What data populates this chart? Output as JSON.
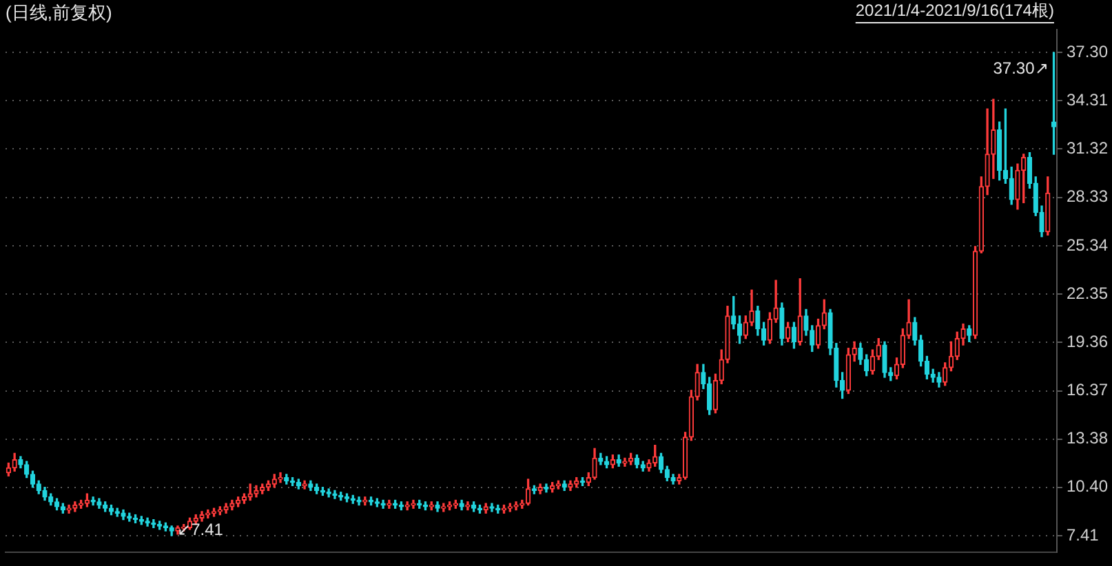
{
  "chart_data": {
    "type": "candlestick",
    "title": "(日线,前复权)",
    "annotations": [
      "2021/1/4-2021/9/16(174根)",
      "37.30↗",
      "↙7.41"
    ],
    "categories": [
      null,
      null,
      null,
      null,
      null,
      null,
      null,
      null,
      null,
      null,
      null,
      null,
      null,
      null,
      null,
      null,
      null,
      null,
      null,
      null,
      null,
      null,
      null,
      null,
      null,
      null,
      null,
      null,
      null,
      null,
      null,
      null,
      null,
      null,
      null,
      null,
      null,
      null,
      null,
      null,
      null,
      null,
      null,
      null,
      null,
      null,
      null,
      null,
      null,
      null,
      null,
      null,
      null,
      null,
      null,
      null,
      null,
      null,
      null,
      null,
      null,
      null,
      null,
      null,
      null,
      null,
      null,
      null,
      null,
      null,
      null,
      null,
      null,
      null,
      null,
      null,
      null,
      null,
      null,
      null,
      null,
      null,
      null,
      null,
      null,
      null,
      null,
      null,
      null,
      null,
      null,
      null,
      null,
      null,
      null,
      null,
      null,
      null,
      null,
      null,
      null,
      null,
      null,
      null,
      null,
      null,
      null,
      null,
      null,
      null,
      null,
      null,
      null,
      null,
      null,
      null,
      null,
      null,
      null,
      null,
      null,
      null,
      null,
      null,
      null,
      null,
      null,
      null,
      null,
      null,
      null,
      null,
      null,
      null,
      null,
      null,
      null,
      null,
      null,
      null,
      null,
      null,
      null,
      null,
      null,
      null,
      null,
      null,
      null,
      null,
      null,
      null,
      null,
      null,
      null,
      null,
      null,
      null,
      null,
      null,
      null,
      null,
      null,
      null,
      null,
      null,
      null,
      null,
      null,
      null,
      null,
      null,
      null,
      null
    ],
    "ohlc": [
      [
        11.3,
        11.9,
        11.1,
        11.6
      ],
      [
        11.6,
        12.5,
        11.4,
        12.1
      ],
      [
        12.1,
        12.3,
        11.6,
        11.8
      ],
      [
        11.8,
        12.0,
        11.0,
        11.2
      ],
      [
        11.2,
        11.4,
        10.4,
        10.6
      ],
      [
        10.6,
        10.8,
        10.0,
        10.2
      ],
      [
        10.2,
        10.4,
        9.6,
        9.8
      ],
      [
        9.8,
        10.0,
        9.3,
        9.5
      ],
      [
        9.5,
        9.7,
        9.0,
        9.2
      ],
      [
        9.2,
        9.4,
        8.8,
        9.0
      ],
      [
        9.0,
        9.3,
        8.8,
        9.1
      ],
      [
        9.1,
        9.5,
        8.9,
        9.3
      ],
      [
        9.3,
        9.6,
        9.1,
        9.4
      ],
      [
        9.4,
        10.0,
        9.2,
        9.6
      ],
      [
        9.6,
        9.8,
        9.3,
        9.5
      ],
      [
        9.5,
        9.7,
        9.1,
        9.3
      ],
      [
        9.3,
        9.5,
        8.9,
        9.1
      ],
      [
        9.1,
        9.3,
        8.7,
        8.9
      ],
      [
        8.9,
        9.1,
        8.6,
        8.8
      ],
      [
        8.8,
        9.0,
        8.4,
        8.6
      ],
      [
        8.6,
        8.8,
        8.3,
        8.5
      ],
      [
        8.5,
        8.7,
        8.2,
        8.4
      ],
      [
        8.4,
        8.6,
        8.1,
        8.3
      ],
      [
        8.3,
        8.5,
        8.0,
        8.2
      ],
      [
        8.2,
        8.4,
        7.9,
        8.1
      ],
      [
        8.1,
        8.3,
        7.8,
        8.0
      ],
      [
        8.0,
        8.2,
        7.7,
        7.9
      ],
      [
        7.9,
        8.0,
        7.41,
        7.7
      ],
      [
        7.7,
        8.0,
        7.5,
        7.9
      ],
      [
        7.9,
        8.1,
        7.7,
        7.9
      ],
      [
        7.9,
        8.5,
        7.8,
        8.3
      ],
      [
        8.3,
        8.7,
        8.1,
        8.5
      ],
      [
        8.5,
        8.9,
        8.3,
        8.7
      ],
      [
        8.7,
        9.0,
        8.5,
        8.8
      ],
      [
        8.8,
        9.1,
        8.6,
        8.9
      ],
      [
        8.9,
        9.2,
        8.7,
        9.0
      ],
      [
        9.0,
        9.4,
        8.8,
        9.2
      ],
      [
        9.2,
        9.6,
        9.0,
        9.4
      ],
      [
        9.4,
        9.8,
        9.2,
        9.6
      ],
      [
        9.6,
        10.0,
        9.4,
        9.8
      ],
      [
        9.8,
        10.6,
        9.6,
        10.0
      ],
      [
        10.0,
        10.5,
        9.8,
        10.2
      ],
      [
        10.2,
        10.6,
        10.0,
        10.4
      ],
      [
        10.4,
        10.8,
        10.2,
        10.6
      ],
      [
        10.6,
        11.2,
        10.4,
        10.9
      ],
      [
        10.9,
        11.3,
        10.7,
        11.0
      ],
      [
        11.0,
        11.2,
        10.6,
        10.8
      ],
      [
        10.8,
        11.0,
        10.5,
        10.7
      ],
      [
        10.7,
        10.9,
        10.3,
        10.5
      ],
      [
        10.5,
        10.8,
        10.3,
        10.6
      ],
      [
        10.6,
        10.8,
        10.2,
        10.4
      ],
      [
        10.4,
        10.6,
        10.0,
        10.2
      ],
      [
        10.2,
        10.4,
        9.9,
        10.1
      ],
      [
        10.1,
        10.3,
        9.8,
        10.0
      ],
      [
        10.0,
        10.2,
        9.7,
        9.9
      ],
      [
        9.9,
        10.1,
        9.6,
        9.8
      ],
      [
        9.8,
        10.0,
        9.5,
        9.7
      ],
      [
        9.7,
        9.9,
        9.4,
        9.6
      ],
      [
        9.6,
        9.8,
        9.3,
        9.5
      ],
      [
        9.5,
        9.8,
        9.3,
        9.6
      ],
      [
        9.6,
        9.8,
        9.3,
        9.5
      ],
      [
        9.5,
        9.7,
        9.2,
        9.4
      ],
      [
        9.4,
        9.6,
        9.1,
        9.3
      ],
      [
        9.3,
        9.6,
        9.1,
        9.4
      ],
      [
        9.4,
        9.6,
        9.1,
        9.3
      ],
      [
        9.3,
        9.5,
        9.0,
        9.2
      ],
      [
        9.2,
        9.5,
        9.0,
        9.3
      ],
      [
        9.3,
        9.6,
        9.1,
        9.4
      ],
      [
        9.4,
        9.6,
        9.1,
        9.3
      ],
      [
        9.3,
        9.5,
        9.0,
        9.2
      ],
      [
        9.2,
        9.5,
        9.0,
        9.3
      ],
      [
        9.3,
        9.5,
        8.9,
        9.1
      ],
      [
        9.1,
        9.4,
        8.9,
        9.2
      ],
      [
        9.2,
        9.5,
        9.0,
        9.3
      ],
      [
        9.3,
        9.6,
        9.1,
        9.4
      ],
      [
        9.4,
        9.6,
        9.0,
        9.2
      ],
      [
        9.2,
        9.5,
        9.0,
        9.3
      ],
      [
        9.3,
        9.5,
        8.9,
        9.1
      ],
      [
        9.1,
        9.3,
        8.8,
        9.0
      ],
      [
        9.0,
        9.4,
        8.8,
        9.2
      ],
      [
        9.2,
        9.4,
        8.9,
        9.1
      ],
      [
        9.1,
        9.3,
        8.8,
        9.0
      ],
      [
        9.0,
        9.3,
        8.8,
        9.1
      ],
      [
        9.1,
        9.4,
        8.9,
        9.2
      ],
      [
        9.2,
        9.5,
        9.0,
        9.3
      ],
      [
        9.3,
        9.6,
        9.1,
        9.4
      ],
      [
        9.4,
        10.9,
        9.3,
        10.3
      ],
      [
        10.3,
        10.5,
        10.0,
        10.2
      ],
      [
        10.2,
        10.6,
        10.0,
        10.4
      ],
      [
        10.4,
        10.6,
        10.1,
        10.3
      ],
      [
        10.3,
        10.7,
        10.1,
        10.5
      ],
      [
        10.5,
        10.8,
        10.3,
        10.6
      ],
      [
        10.6,
        10.8,
        10.2,
        10.4
      ],
      [
        10.4,
        10.8,
        10.2,
        10.6
      ],
      [
        10.6,
        11.0,
        10.4,
        10.8
      ],
      [
        10.8,
        11.0,
        10.5,
        10.7
      ],
      [
        10.7,
        11.3,
        10.5,
        11.0
      ],
      [
        11.0,
        12.8,
        10.9,
        12.2
      ],
      [
        12.2,
        12.5,
        11.8,
        12.0
      ],
      [
        12.0,
        12.3,
        11.6,
        11.8
      ],
      [
        11.8,
        12.4,
        11.6,
        12.1
      ],
      [
        12.1,
        12.4,
        11.7,
        11.9
      ],
      [
        11.9,
        12.2,
        11.7,
        12.0
      ],
      [
        12.0,
        12.5,
        11.8,
        12.2
      ],
      [
        12.2,
        12.4,
        11.6,
        11.8
      ],
      [
        11.8,
        12.0,
        11.4,
        11.6
      ],
      [
        11.6,
        12.1,
        11.4,
        11.9
      ],
      [
        11.9,
        13.0,
        11.7,
        12.3
      ],
      [
        12.3,
        12.5,
        11.3,
        11.5
      ],
      [
        11.5,
        11.7,
        10.8,
        11.0
      ],
      [
        11.0,
        11.2,
        10.6,
        10.8
      ],
      [
        10.8,
        11.2,
        10.6,
        11.0
      ],
      [
        11.0,
        13.8,
        10.9,
        13.5
      ],
      [
        13.5,
        16.4,
        13.3,
        16.0
      ],
      [
        16.0,
        18.0,
        15.8,
        17.5
      ],
      [
        17.5,
        18.0,
        16.5,
        16.8
      ],
      [
        16.8,
        17.2,
        14.9,
        15.2
      ],
      [
        15.2,
        17.4,
        15.0,
        17.0
      ],
      [
        17.0,
        18.9,
        16.8,
        18.3
      ],
      [
        18.3,
        21.6,
        18.1,
        21.0
      ],
      [
        21.0,
        22.2,
        20.2,
        20.5
      ],
      [
        20.5,
        21.0,
        19.3,
        19.8
      ],
      [
        19.8,
        21.0,
        19.6,
        20.6
      ],
      [
        20.6,
        22.6,
        20.4,
        21.3
      ],
      [
        21.3,
        21.6,
        19.8,
        20.2
      ],
      [
        20.2,
        20.6,
        19.2,
        19.5
      ],
      [
        19.5,
        21.2,
        19.3,
        20.8
      ],
      [
        20.8,
        23.2,
        20.6,
        21.5
      ],
      [
        21.5,
        21.8,
        19.2,
        19.6
      ],
      [
        19.6,
        20.6,
        19.4,
        20.3
      ],
      [
        20.3,
        20.6,
        19.0,
        19.4
      ],
      [
        19.4,
        23.3,
        19.2,
        21.0
      ],
      [
        21.0,
        21.4,
        19.8,
        20.1
      ],
      [
        20.1,
        20.4,
        18.8,
        19.2
      ],
      [
        19.2,
        20.8,
        19.0,
        20.4
      ],
      [
        20.4,
        22.0,
        20.2,
        21.2
      ],
      [
        21.2,
        21.4,
        18.6,
        19.0
      ],
      [
        19.0,
        19.3,
        16.6,
        17.0
      ],
      [
        17.0,
        17.5,
        15.9,
        16.4
      ],
      [
        16.4,
        19.0,
        16.2,
        18.6
      ],
      [
        18.6,
        19.4,
        18.2,
        19.0
      ],
      [
        19.0,
        19.3,
        18.0,
        18.3
      ],
      [
        18.3,
        18.6,
        17.3,
        17.6
      ],
      [
        17.6,
        18.9,
        17.4,
        18.5
      ],
      [
        18.5,
        19.6,
        18.3,
        19.2
      ],
      [
        19.2,
        19.4,
        17.2,
        17.5
      ],
      [
        17.5,
        17.8,
        17.0,
        17.3
      ],
      [
        17.3,
        18.4,
        17.1,
        18.0
      ],
      [
        18.0,
        20.2,
        17.8,
        19.8
      ],
      [
        19.8,
        22.0,
        19.6,
        20.6
      ],
      [
        20.6,
        20.9,
        19.2,
        19.5
      ],
      [
        19.5,
        19.8,
        17.9,
        18.2
      ],
      [
        18.2,
        18.5,
        17.1,
        17.4
      ],
      [
        17.4,
        17.7,
        16.9,
        17.2
      ],
      [
        17.2,
        17.5,
        16.6,
        16.9
      ],
      [
        16.9,
        18.1,
        16.7,
        17.8
      ],
      [
        17.8,
        19.4,
        17.6,
        18.5
      ],
      [
        18.5,
        20.0,
        18.3,
        19.6
      ],
      [
        19.6,
        20.5,
        19.2,
        20.2
      ],
      [
        20.2,
        20.4,
        19.4,
        19.8
      ],
      [
        19.8,
        25.3,
        19.6,
        25.0
      ],
      [
        25.0,
        29.6,
        24.9,
        29.0
      ],
      [
        29.0,
        33.8,
        28.5,
        31.0
      ],
      [
        31.0,
        34.4,
        29.5,
        32.5
      ],
      [
        32.5,
        33.0,
        29.4,
        30.0
      ],
      [
        30.0,
        33.8,
        29.2,
        29.5
      ],
      [
        29.5,
        30.2,
        27.9,
        28.2
      ],
      [
        28.2,
        30.4,
        27.6,
        30.0
      ],
      [
        30.0,
        31.0,
        28.0,
        30.8
      ],
      [
        30.8,
        31.1,
        28.9,
        29.2
      ],
      [
        29.2,
        29.6,
        27.2,
        27.4
      ],
      [
        27.4,
        27.8,
        25.9,
        26.2
      ],
      [
        26.2,
        29.6,
        26.0,
        28.6
      ],
      [
        33.0,
        37.3,
        31.0,
        32.7
      ]
    ],
    "ylim": [
      6.4,
      38.7
    ],
    "yticks": [
      {
        "value": 7.41,
        "label": "7.41"
      },
      {
        "value": 10.4,
        "label": "10.40"
      },
      {
        "value": 13.38,
        "label": "13.38"
      },
      {
        "value": 16.37,
        "label": "16.37"
      },
      {
        "value": 19.36,
        "label": "19.36"
      },
      {
        "value": 22.35,
        "label": "22.35"
      },
      {
        "value": 25.34,
        "label": "25.34"
      },
      {
        "value": 28.33,
        "label": "28.33"
      },
      {
        "value": 31.32,
        "label": "31.32"
      },
      {
        "value": 34.31,
        "label": "34.31"
      },
      {
        "value": 37.3,
        "label": "37.30"
      }
    ],
    "grid": "y"
  }
}
